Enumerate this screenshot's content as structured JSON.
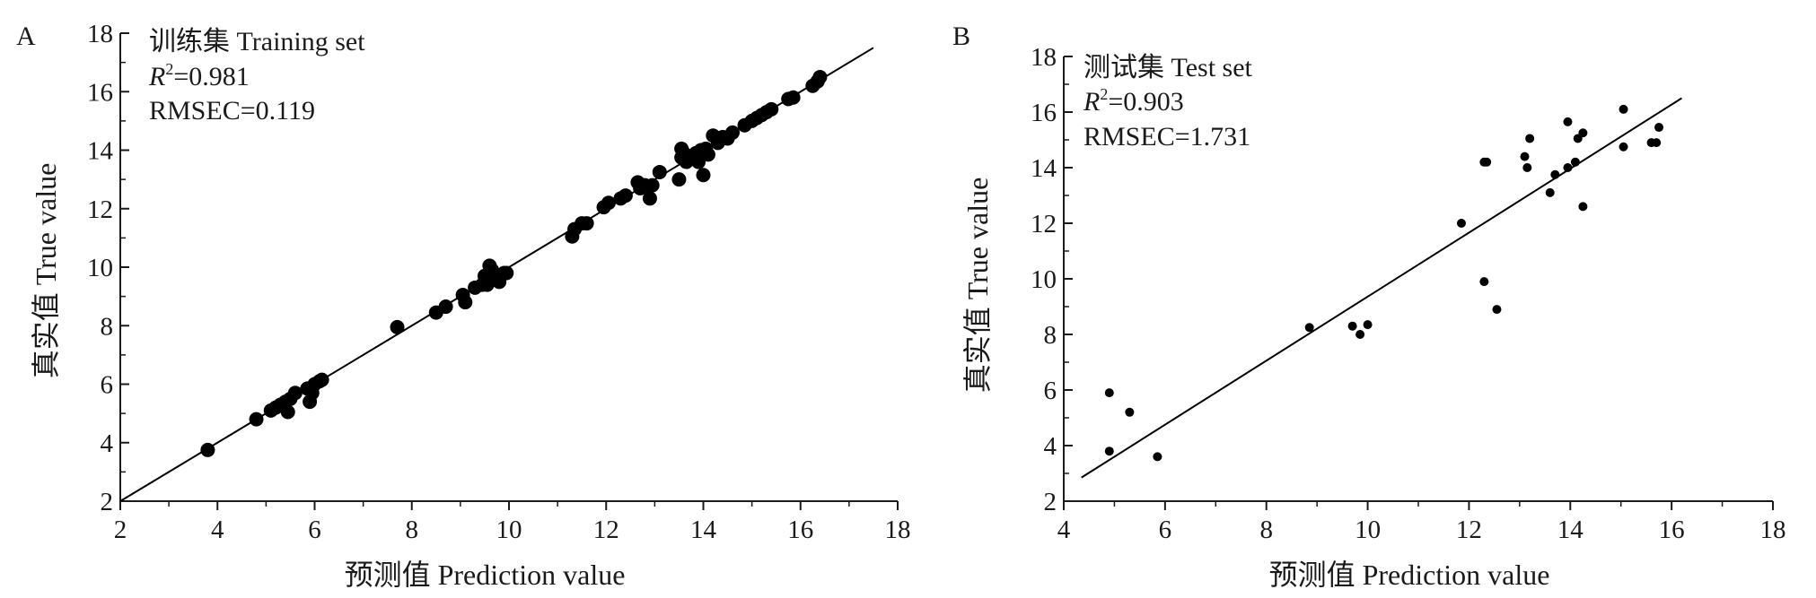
{
  "chart_data": [
    {
      "type": "scatter",
      "panel_label": "A",
      "title": "训练集 Training set",
      "annotations": {
        "r2_prefix": "R",
        "r2_sup": "2",
        "r2_value": "=0.981",
        "rmse": "RMSEC=0.119"
      },
      "xlabel": "预测值 Prediction value",
      "ylabel": "真实值 True value",
      "xlim": [
        2,
        18
      ],
      "ylim": [
        2,
        18
      ],
      "xticks": [
        "2",
        "4",
        "6",
        "8",
        "10",
        "12",
        "14",
        "16",
        "18"
      ],
      "yticks": [
        "2",
        "4",
        "6",
        "8",
        "10",
        "12",
        "14",
        "16",
        "18"
      ],
      "grid": false,
      "marker_color": "#000000",
      "fit_line": [
        [
          2.0,
          2.0
        ],
        [
          17.5,
          17.5
        ]
      ],
      "points": [
        [
          3.8,
          3.75
        ],
        [
          4.8,
          4.8
        ],
        [
          5.1,
          5.1
        ],
        [
          5.2,
          5.2
        ],
        [
          5.3,
          5.3
        ],
        [
          5.4,
          5.4
        ],
        [
          5.5,
          5.5
        ],
        [
          5.45,
          5.05
        ],
        [
          5.6,
          5.7
        ],
        [
          5.85,
          5.85
        ],
        [
          5.9,
          5.4
        ],
        [
          5.95,
          5.7
        ],
        [
          6.0,
          6.0
        ],
        [
          6.1,
          6.1
        ],
        [
          6.15,
          6.15
        ],
        [
          7.7,
          7.95
        ],
        [
          8.5,
          8.45
        ],
        [
          8.7,
          8.65
        ],
        [
          9.05,
          9.05
        ],
        [
          9.1,
          8.8
        ],
        [
          9.3,
          9.3
        ],
        [
          9.45,
          9.4
        ],
        [
          9.5,
          9.7
        ],
        [
          9.55,
          9.4
        ],
        [
          9.6,
          10.05
        ],
        [
          9.65,
          9.9
        ],
        [
          9.7,
          9.6
        ],
        [
          9.8,
          9.5
        ],
        [
          9.9,
          9.8
        ],
        [
          9.95,
          9.8
        ],
        [
          11.3,
          11.05
        ],
        [
          11.35,
          11.3
        ],
        [
          11.5,
          11.5
        ],
        [
          11.6,
          11.5
        ],
        [
          11.95,
          12.05
        ],
        [
          12.05,
          12.2
        ],
        [
          12.3,
          12.35
        ],
        [
          12.4,
          12.45
        ],
        [
          12.65,
          12.9
        ],
        [
          12.7,
          12.7
        ],
        [
          12.8,
          12.8
        ],
        [
          12.9,
          12.35
        ],
        [
          12.95,
          12.8
        ],
        [
          13.1,
          13.25
        ],
        [
          13.5,
          13.0
        ],
        [
          13.55,
          13.75
        ],
        [
          13.55,
          14.05
        ],
        [
          13.6,
          13.9
        ],
        [
          13.65,
          13.6
        ],
        [
          13.75,
          13.7
        ],
        [
          13.8,
          13.75
        ],
        [
          13.85,
          13.9
        ],
        [
          13.9,
          13.6
        ],
        [
          13.95,
          14.0
        ],
        [
          14.0,
          13.15
        ],
        [
          14.05,
          14.05
        ],
        [
          14.1,
          13.85
        ],
        [
          14.2,
          14.5
        ],
        [
          14.3,
          14.25
        ],
        [
          14.4,
          14.45
        ],
        [
          14.5,
          14.4
        ],
        [
          14.6,
          14.6
        ],
        [
          14.85,
          14.85
        ],
        [
          15.0,
          15.0
        ],
        [
          15.1,
          15.1
        ],
        [
          15.2,
          15.2
        ],
        [
          15.3,
          15.3
        ],
        [
          15.4,
          15.4
        ],
        [
          15.75,
          15.75
        ],
        [
          15.85,
          15.8
        ],
        [
          16.25,
          16.2
        ],
        [
          16.35,
          16.35
        ],
        [
          16.4,
          16.5
        ]
      ]
    },
    {
      "type": "scatter",
      "panel_label": "B",
      "title": "测试集 Test set",
      "annotations": {
        "r2_prefix": "R",
        "r2_sup": "2",
        "r2_value": "=0.903",
        "rmse": "RMSEC=1.731"
      },
      "xlabel": "预测值 Prediction value",
      "ylabel": "真实值 True value",
      "xlim": [
        4,
        18
      ],
      "ylim": [
        2,
        18
      ],
      "xticks": [
        "4",
        "6",
        "8",
        "10",
        "12",
        "14",
        "16",
        "18"
      ],
      "yticks": [
        "2",
        "4",
        "6",
        "8",
        "10",
        "12",
        "14",
        "16",
        "18"
      ],
      "grid": false,
      "marker_color": "#000000",
      "fit_line": [
        [
          4.35,
          2.85
        ],
        [
          16.2,
          16.5
        ]
      ],
      "points": [
        [
          4.9,
          5.9
        ],
        [
          4.9,
          3.8
        ],
        [
          5.3,
          5.2
        ],
        [
          5.85,
          3.6
        ],
        [
          8.85,
          8.25
        ],
        [
          9.7,
          8.3
        ],
        [
          9.85,
          8.0
        ],
        [
          10.0,
          8.35
        ],
        [
          11.85,
          12.0
        ],
        [
          12.3,
          14.2
        ],
        [
          12.35,
          14.2
        ],
        [
          12.3,
          9.9
        ],
        [
          12.55,
          8.9
        ],
        [
          13.1,
          14.4
        ],
        [
          13.15,
          14.0
        ],
        [
          13.2,
          15.05
        ],
        [
          13.6,
          13.1
        ],
        [
          13.7,
          13.75
        ],
        [
          13.95,
          14.0
        ],
        [
          13.95,
          15.65
        ],
        [
          14.1,
          14.2
        ],
        [
          14.15,
          15.05
        ],
        [
          14.25,
          15.25
        ],
        [
          14.25,
          12.6
        ],
        [
          15.05,
          16.1
        ],
        [
          15.05,
          14.75
        ],
        [
          15.6,
          14.9
        ],
        [
          15.7,
          14.9
        ],
        [
          15.75,
          15.45
        ]
      ]
    }
  ]
}
